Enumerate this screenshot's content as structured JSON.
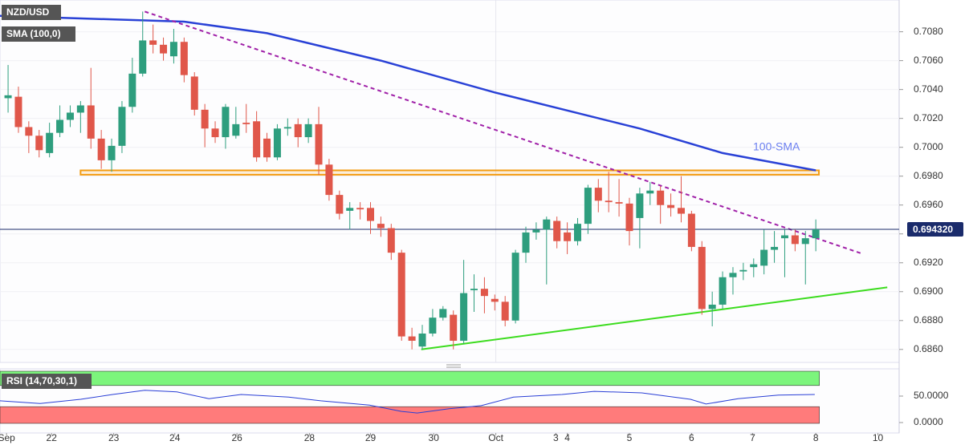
{
  "chart_data": {
    "type": "candlestick",
    "legend": [
      "NZD/USD",
      "SMA (100,0)"
    ],
    "up_color": "#2e9e7e",
    "down_color": "#e0574a",
    "x": [
      0,
      1,
      2,
      3,
      4,
      5,
      6,
      7,
      8,
      9,
      10,
      11,
      12,
      13,
      14,
      15,
      16,
      17,
      18,
      19,
      20,
      21,
      22,
      23,
      24,
      25,
      26,
      27,
      28,
      29,
      30,
      31,
      32,
      33,
      34,
      35,
      36,
      37,
      38,
      39,
      40,
      41,
      42,
      43,
      44,
      45,
      46,
      47,
      48,
      49,
      50,
      51,
      52,
      53,
      54,
      55,
      56,
      57,
      58,
      59,
      60,
      61,
      62,
      63,
      64,
      65,
      66,
      67,
      68,
      69,
      70,
      71,
      72,
      73,
      74,
      75,
      76,
      77,
      78
    ],
    "open": [
      0.7034,
      0.7035,
      0.7014,
      0.7008,
      0.6996,
      0.701,
      0.7019,
      0.7024,
      0.7029,
      0.7006,
      0.6991,
      0.7001,
      0.7028,
      0.7051,
      0.7074,
      0.7071,
      0.7063,
      0.7073,
      0.7049,
      0.7026,
      0.7013,
      0.7007,
      0.7008,
      0.7017,
      0.7018,
      0.7006,
      0.6993,
      0.7013,
      0.7016,
      0.7007,
      0.7016,
      0.6988,
      0.6967,
      0.6956,
      0.6958,
      0.6958,
      0.6947,
      0.6944,
      0.6927,
      0.6869,
      0.6862,
      0.6871,
      0.6882,
      0.6884,
      0.6866,
      0.6901,
      0.6902,
      0.6895,
      0.6893,
      0.688,
      0.6927,
      0.6941,
      0.6943,
      0.6949,
      0.6941,
      0.6935,
      0.6947,
      0.6972,
      0.6963,
      0.6962,
      0.6961,
      0.6951,
      0.6968,
      0.697,
      0.696,
      0.6958,
      0.6954,
      0.6931,
      0.6888,
      0.6891,
      0.691,
      0.6914,
      0.6917,
      0.6918,
      0.6929,
      0.6937,
      0.6939,
      0.6933,
      0.6937
    ],
    "high": [
      0.7057,
      0.7042,
      0.7018,
      0.7012,
      0.7017,
      0.7029,
      0.7029,
      0.7032,
      0.7055,
      0.7012,
      0.7006,
      0.7032,
      0.7062,
      0.7094,
      0.7085,
      0.7076,
      0.7082,
      0.7076,
      0.7052,
      0.703,
      0.7018,
      0.703,
      0.7028,
      0.703,
      0.7025,
      0.701,
      0.7016,
      0.702,
      0.702,
      0.702,
      0.7028,
      0.6992,
      0.697,
      0.6962,
      0.6962,
      0.6962,
      0.6952,
      0.6947,
      0.6929,
      0.6875,
      0.6877,
      0.6888,
      0.689,
      0.6887,
      0.6922,
      0.6912,
      0.691,
      0.6898,
      0.6897,
      0.6929,
      0.6945,
      0.6948,
      0.6952,
      0.6952,
      0.6948,
      0.6951,
      0.6974,
      0.6978,
      0.6983,
      0.6978,
      0.6965,
      0.6972,
      0.6976,
      0.6973,
      0.6968,
      0.698,
      0.6956,
      0.6935,
      0.69,
      0.6914,
      0.6917,
      0.692,
      0.6923,
      0.6943,
      0.6942,
      0.6943,
      0.6943,
      0.6942,
      0.695
    ],
    "low": [
      0.7024,
      0.701,
      0.6996,
      0.6993,
      0.6993,
      0.7007,
      0.7014,
      0.701,
      0.6999,
      0.6985,
      0.6983,
      0.6996,
      0.7024,
      0.7049,
      0.7065,
      0.706,
      0.7058,
      0.7045,
      0.7022,
      0.7,
      0.7003,
      0.6999,
      0.7006,
      0.701,
      0.699,
      0.699,
      0.6991,
      0.7008,
      0.7,
      0.7003,
      0.6981,
      0.6963,
      0.695,
      0.6943,
      0.695,
      0.694,
      0.6938,
      0.6922,
      0.6866,
      0.686,
      0.686,
      0.6869,
      0.688,
      0.686,
      0.6864,
      0.6886,
      0.6885,
      0.6887,
      0.6876,
      0.6878,
      0.692,
      0.6936,
      0.6905,
      0.693,
      0.6926,
      0.6932,
      0.694,
      0.6955,
      0.6955,
      0.6952,
      0.6932,
      0.693,
      0.696,
      0.6947,
      0.6952,
      0.6948,
      0.6928,
      0.6884,
      0.6876,
      0.6888,
      0.6898,
      0.6908,
      0.691,
      0.6912,
      0.692,
      0.691,
      0.6928,
      0.6905,
      0.6928
    ],
    "close": [
      0.7036,
      0.7014,
      0.7008,
      0.6998,
      0.701,
      0.7019,
      0.7024,
      0.7029,
      0.7006,
      0.6991,
      0.7001,
      0.7028,
      0.7051,
      0.7074,
      0.7071,
      0.7065,
      0.7073,
      0.705,
      0.7026,
      0.7013,
      0.7007,
      0.7028,
      0.7016,
      0.7016,
      0.6993,
      0.6993,
      0.7013,
      0.7014,
      0.7007,
      0.7016,
      0.6988,
      0.6967,
      0.6954,
      0.6958,
      0.6957,
      0.6949,
      0.6944,
      0.6927,
      0.6869,
      0.6866,
      0.6871,
      0.6882,
      0.6888,
      0.6866,
      0.6899,
      0.6902,
      0.6897,
      0.6893,
      0.688,
      0.6927,
      0.6941,
      0.6943,
      0.695,
      0.6935,
      0.6935,
      0.6947,
      0.6972,
      0.6963,
      0.6962,
      0.6961,
      0.6942,
      0.6968,
      0.697,
      0.696,
      0.6958,
      0.6954,
      0.6931,
      0.6888,
      0.6891,
      0.691,
      0.6913,
      0.6915,
      0.6919,
      0.6929,
      0.6931,
      0.6939,
      0.6933,
      0.6937,
      0.69432
    ],
    "sma": {
      "name": "100-SMA",
      "color": "#2941d6",
      "x": [
        -0.78,
        17,
        25,
        36,
        47,
        61,
        69,
        78
      ],
      "values": [
        0.7091,
        0.7087,
        0.7079,
        0.706,
        0.7038,
        0.7013,
        0.6996,
        0.6984
      ]
    },
    "trendlines": [
      {
        "color": "#a020a8",
        "dashed": true,
        "x": [
          13.2,
          82.6
        ],
        "values": [
          0.7094,
          0.6926
        ]
      },
      {
        "color": "#3cdc1e",
        "dashed": false,
        "x": [
          39.9,
          84.9
        ],
        "values": [
          0.686,
          0.6903
        ]
      }
    ],
    "zone": {
      "color": "#f39c12",
      "x": [
        7,
        78.3
      ],
      "values": [
        0.6984,
        0.6981
      ]
    },
    "last_price": {
      "value": 0.69432,
      "label": "0.694320",
      "color": "#1a2b6b"
    },
    "xlim": [
      -0.78,
      86.05
    ],
    "ylim": [
      0.6851,
      0.7102
    ],
    "yticks": [
      {
        "value": 0.686,
        "label": "0.6860"
      },
      {
        "value": 0.688,
        "label": "0.6880"
      },
      {
        "value": 0.69,
        "label": "0.6900"
      },
      {
        "value": 0.692,
        "label": "0.6920"
      },
      {
        "value": 0.694,
        "label": "0.6940"
      },
      {
        "value": 0.696,
        "label": "0.6960"
      },
      {
        "value": 0.698,
        "label": "0.6980"
      },
      {
        "value": 0.7,
        "label": "0.7000"
      },
      {
        "value": 0.702,
        "label": "0.7020"
      },
      {
        "value": 0.704,
        "label": "0.7040"
      },
      {
        "value": 0.706,
        "label": "0.7060"
      },
      {
        "value": 0.708,
        "label": "0.7080"
      }
    ],
    "xticks": [
      {
        "value": -0.15,
        "label": "Sep"
      },
      {
        "value": 4.2,
        "label": "22"
      },
      {
        "value": 10.2,
        "label": "23"
      },
      {
        "value": 16.1,
        "label": "24"
      },
      {
        "value": 22.1,
        "label": "26"
      },
      {
        "value": 29.1,
        "label": "28"
      },
      {
        "value": 35,
        "label": "29"
      },
      {
        "value": 41.1,
        "label": "30"
      },
      {
        "value": 47.1,
        "label": "Oct"
      },
      {
        "value": 52.9,
        "label": "3"
      },
      {
        "value": 54,
        "label": "4"
      },
      {
        "value": 60,
        "label": "5"
      },
      {
        "value": 66,
        "label": "6"
      },
      {
        "value": 71.9,
        "label": "7"
      },
      {
        "value": 78,
        "label": "8"
      },
      {
        "value": 84,
        "label": "10"
      }
    ],
    "rsi": {
      "title": "RSI (14,70,30,1)",
      "overbought": 70,
      "oversold": 30,
      "color": "#2a3fd6",
      "x": [
        -0.8,
        3.1,
        7,
        10.1,
        13.2,
        16.3,
        19.4,
        22.5,
        27.1,
        30.2,
        34.9,
        38,
        39.5,
        42.6,
        45.7,
        48.8,
        53.5,
        56.6,
        61.2,
        65.9,
        67.4,
        70.5,
        74.4,
        77.9
      ],
      "values": [
        41,
        36,
        44,
        53,
        61,
        58,
        45,
        53,
        48,
        41,
        33,
        21,
        18,
        26,
        32,
        48,
        53,
        59,
        56,
        44,
        35,
        45,
        52,
        53
      ],
      "ylim": [
        -19.7,
        101.5
      ],
      "yticks": [
        {
          "value": 50,
          "label": "50.0000"
        },
        {
          "value": 0,
          "label": "0.0000"
        }
      ]
    }
  }
}
